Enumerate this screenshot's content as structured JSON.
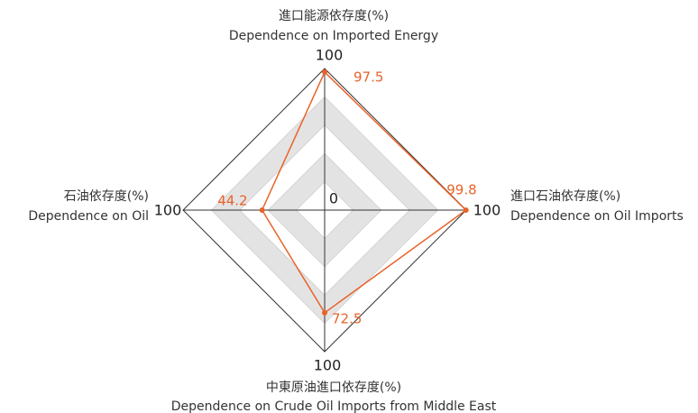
{
  "chart_data": {
    "type": "radar",
    "categories": [
      [
        "進口能源依存度(%)",
        "Dependence on Imported Energy"
      ],
      [
        "進口石油依存度(%)",
        "Dependence on Oil Imports"
      ],
      [
        "中東原油進口依存度(%)",
        "Dependence on Crude Oil Imports from Middle East"
      ],
      [
        "石油依存度(%)",
        "Dependence on Oil"
      ]
    ],
    "values": [
      97.5,
      99.8,
      72.5,
      44.2
    ],
    "color": "#e8632a",
    "rlim": [
      0,
      100
    ],
    "rticks": [
      20,
      40,
      60,
      80,
      100
    ]
  }
}
